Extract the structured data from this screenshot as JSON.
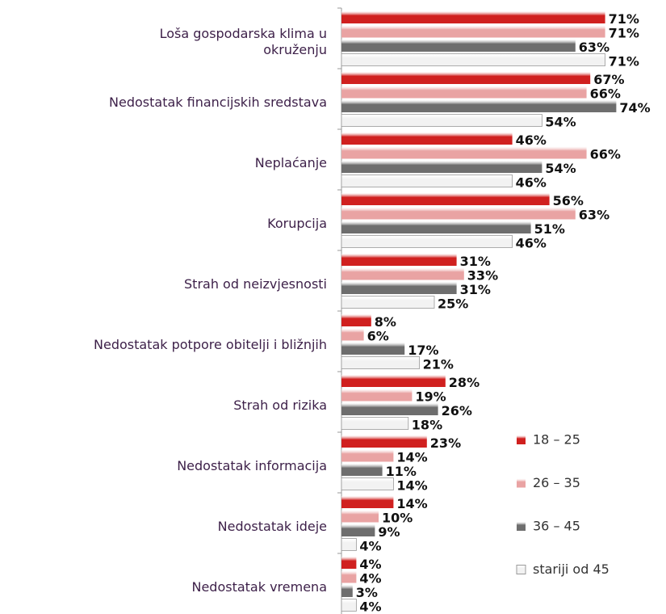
{
  "chart_data": {
    "type": "hbar",
    "categories": [
      "Loša gospodarska klima u\nokruženju",
      "Nedostatak financijskih sredstava",
      "Neplaćanje",
      "Korupcija",
      "Strah od neizvjesnosti",
      "Nedostatak potpore obitelji i bližnjih",
      "Strah od rizika",
      "Nedostatak informacija",
      "Nedostatak ideje",
      "Nedostatak vremena"
    ],
    "xlim": [
      0,
      80
    ],
    "legend": "right",
    "series": [
      {
        "name": "18 – 25",
        "color": "#d0201f",
        "values": [
          71,
          67,
          46,
          56,
          31,
          8,
          28,
          23,
          14,
          4
        ],
        "value_labels": [
          "71%",
          "67%",
          "46%",
          "56%",
          "31%",
          "8%",
          "28%",
          "23%",
          "14%",
          "4%"
        ]
      },
      {
        "name": "26 – 35",
        "color": "#e9a3a3",
        "values": [
          71,
          66,
          66,
          63,
          33,
          6,
          19,
          14,
          10,
          4
        ],
        "value_labels": [
          "71%",
          "66%",
          "66%",
          "63%",
          "33%",
          "6%",
          "19%",
          "14%",
          "10%",
          "4%"
        ]
      },
      {
        "name": "36 – 45",
        "color": "#6e6e6e",
        "values": [
          63,
          74,
          54,
          51,
          31,
          17,
          26,
          11,
          9,
          3
        ],
        "value_labels": [
          "63%",
          "74%",
          "54%",
          "51%",
          "31%",
          "17%",
          "26%",
          "11%",
          "9%",
          "3%"
        ]
      },
      {
        "name": "stariji od 45",
        "color": "#f2f2f2",
        "values": [
          71,
          54,
          46,
          46,
          25,
          21,
          18,
          14,
          4,
          4
        ],
        "value_labels": [
          "71%",
          "54%",
          "46%",
          "46%",
          "25%",
          "21%",
          "18%",
          "14%",
          "4%",
          "4%"
        ]
      }
    ]
  }
}
